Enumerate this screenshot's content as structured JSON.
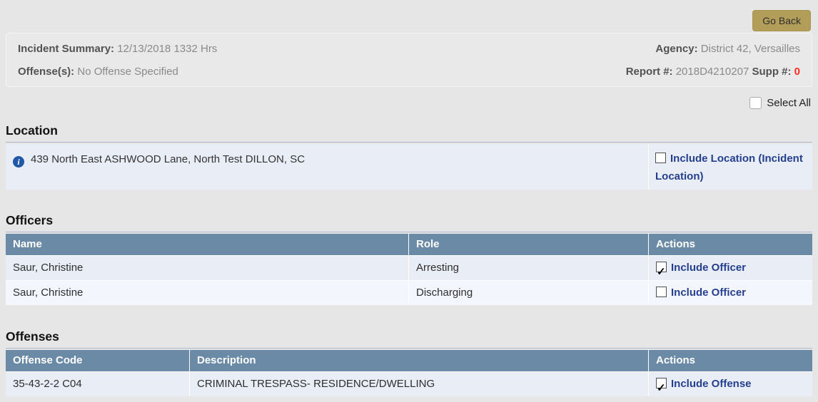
{
  "header": {
    "go_back_label": "Go Back",
    "summary": {
      "incident_label": "Incident Summary:",
      "incident_value": "12/13/2018 1332 Hrs",
      "agency_label": "Agency:",
      "agency_value": "District 42, Versailles",
      "offense_label": "Offense(s):",
      "offense_value": "No Offense Specified",
      "report_label": "Report #:",
      "report_value": "2018D4210207",
      "supp_label": "Supp #:",
      "supp_value": "0"
    }
  },
  "select_all": {
    "label": "Select All",
    "checked": false
  },
  "location": {
    "heading": "Location",
    "address": "439 North East ASHWOOD Lane, North Test DILLON, SC",
    "include_label": "Include Location (Incident Location)",
    "include_checked": false
  },
  "officers": {
    "heading": "Officers",
    "columns": [
      "Name",
      "Role",
      "Actions"
    ],
    "rows": [
      {
        "name": "Saur, Christine",
        "role": "Arresting",
        "action_label": "Include Officer",
        "checked": true
      },
      {
        "name": "Saur, Christine",
        "role": "Discharging",
        "action_label": "Include Officer",
        "checked": false
      }
    ]
  },
  "offenses": {
    "heading": "Offenses",
    "columns": [
      "Offense Code",
      "Description",
      "Actions"
    ],
    "rows": [
      {
        "code": "35-43-2-2 C04",
        "description": "CRIMINAL TRESPASS- RESIDENCE/DWELLING",
        "action_label": "Include Offense",
        "checked": true
      }
    ]
  },
  "colors": {
    "page_bg": "#e6e6e6",
    "table_header_bg": "#6a8aa5",
    "row_bg": "#e9edf6",
    "row_alt_bg": "#f3f7fd",
    "link_navy": "#253f8e",
    "go_back_bg": "#b29e59",
    "supp_red": "#fb2c23",
    "info_icon_blue": "#2157a7"
  }
}
